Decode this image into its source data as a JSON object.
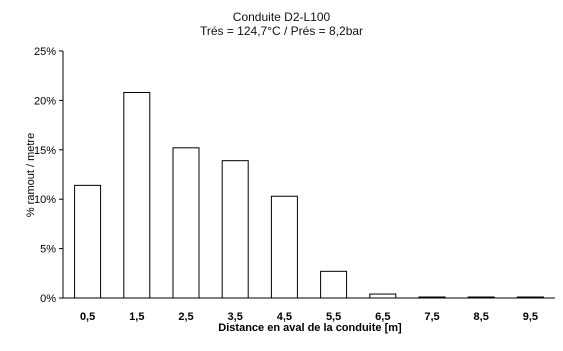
{
  "chart_data": {
    "type": "bar",
    "title": "Conduite  D2-L100",
    "subtitle": "Trés = 124,7°C / Prés = 8,2bar",
    "xlabel": "Distance en aval de la conduite [m]",
    "ylabel": "% ramout / metre",
    "categories": [
      "0,5",
      "1,5",
      "2,5",
      "3,5",
      "4,5",
      "5,5",
      "6,5",
      "7,5",
      "8,5",
      "9,5"
    ],
    "values": [
      11.4,
      20.8,
      15.2,
      13.9,
      10.3,
      2.7,
      0.4,
      0.1,
      0.1,
      0.1
    ],
    "yticks": [
      "0%",
      "5%",
      "10%",
      "15%",
      "20%",
      "25%"
    ],
    "ylim": [
      0,
      25
    ],
    "grid": false,
    "colors": {
      "bar_fill": "#ffffff",
      "bar_stroke": "#000000",
      "axis": "#000000"
    }
  }
}
